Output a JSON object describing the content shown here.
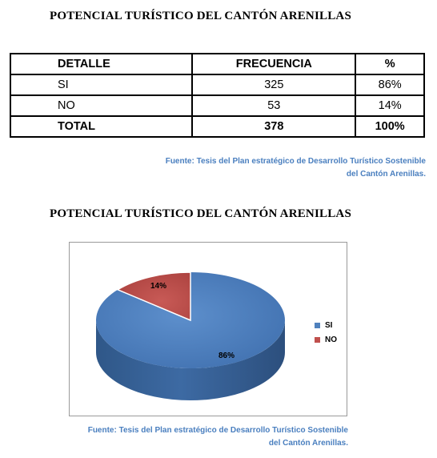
{
  "title_top": "POTENCIAL TURÍSTICO DEL CANTÓN ARENILLAS",
  "table": {
    "headers": [
      "DETALLE",
      "FRECUENCIA",
      "%"
    ],
    "rows": [
      {
        "detalle": "SI",
        "frecuencia": "325",
        "pct": "86%"
      },
      {
        "detalle": "NO",
        "frecuencia": "53",
        "pct": "14%"
      }
    ],
    "total": {
      "detalle": "TOTAL",
      "frecuencia": "378",
      "pct": "100%"
    }
  },
  "source_1": {
    "line1": "Fuente: Tesis del Plan estratégico de Desarrollo Turístico Sostenible",
    "line2": "del Cantón Arenillas."
  },
  "title_chart": "POTENCIAL TURÍSTICO DEL CANTÓN ARENILLAS",
  "chart_data": {
    "type": "pie",
    "labels": [
      "SI",
      "NO"
    ],
    "values": [
      86,
      14
    ],
    "data_labels": [
      "86%",
      "14%"
    ],
    "colors": [
      "#4f81bd",
      "#c0504d"
    ],
    "legend_placement": "right",
    "style": "3d"
  },
  "source_2": {
    "line1": "Fuente: Tesis del Plan estratégico de Desarrollo Turístico Sostenible",
    "line2": "del Cantón Arenillas."
  }
}
